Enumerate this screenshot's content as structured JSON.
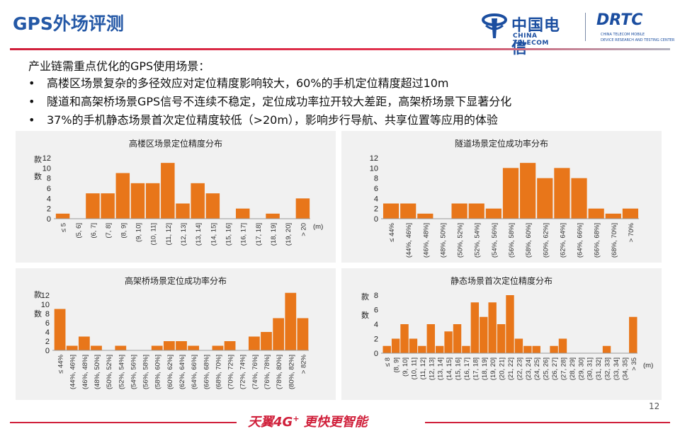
{
  "header": {
    "title": "GPS外场评测",
    "logo_ct_cn": "中国电信",
    "logo_ct_en": "CHINA TELECOM",
    "logo_drtc": "DRTC",
    "logo_drtc_sub1": "CHINA TELECOM MOBILE",
    "logo_drtc_sub2": "DEVICE RESEARCH AND TESTING CENTER"
  },
  "intro": "产业链需重点优化的GPS使用场景：",
  "bullets": [
    "高楼区场景复杂的多径效应对定位精度影响较大，60%的手机定位精度超过10m",
    "隧道和高架桥场景GPS信号不连续不稳定，定位成功率拉开较大差距，高架桥场景下显著分化",
    "37%的手机静态场景首次定位精度较低（>20m），影响步行导航、共享位置等应用的体验"
  ],
  "chart_data": [
    {
      "type": "bar",
      "title": "高楼区场景定位精度分布",
      "ylabel": "款数",
      "xlabel": "(m)",
      "ylim": [
        0,
        12
      ],
      "yticks": [
        0,
        2,
        4,
        6,
        8,
        10,
        12
      ],
      "categories": [
        "≤ 5",
        "(5, 6]",
        "(6, 7]",
        "(7, 8]",
        "(8, 9]",
        "(9, 10]",
        "(10, 11]",
        "(11, 12]",
        "(12, 13]",
        "(13, 14]",
        "(14, 15]",
        "(15, 16]",
        "(16, 17]",
        "(17, 18]",
        "(18, 19]",
        "(19, 20]",
        "> 20"
      ],
      "values": [
        1,
        0,
        5,
        5,
        9,
        7,
        7,
        11,
        3,
        7,
        5,
        0,
        2,
        0,
        1,
        0,
        4
      ],
      "color": "#e8761a",
      "grid": false
    },
    {
      "type": "bar",
      "title": "隧道场景定位成功率分布",
      "ylabel": "",
      "xlabel": "",
      "ylim": [
        0,
        12
      ],
      "yticks": [
        0,
        2,
        4,
        6,
        8,
        10,
        12
      ],
      "categories": [
        "≤ 44%",
        "(44%, 46%]",
        "(46%, 48%]",
        "(48%, 50%]",
        "(50%, 52%]",
        "(52%, 54%]",
        "(54%, 56%]",
        "(56%, 58%]",
        "(58%, 60%]",
        "(60%, 62%]",
        "(62%, 64%]",
        "(64%, 66%]",
        "(66%, 68%]",
        "(68%, 70%]",
        "> 70%"
      ],
      "values": [
        3,
        3,
        1,
        0,
        3,
        3,
        2,
        10,
        11,
        8,
        10,
        8,
        2,
        1,
        2
      ],
      "color": "#e8761a",
      "grid": false
    },
    {
      "type": "bar",
      "title": "高架桥场景定位成功率分布",
      "ylabel": "款数",
      "xlabel": "",
      "ylim": [
        0,
        12
      ],
      "yticks": [
        0,
        2,
        4,
        6,
        8,
        10,
        12
      ],
      "categories": [
        "≤ 44%",
        "(44%, 46%]",
        "(46%, 48%]",
        "(48%, 50%]",
        "(50%, 52%]",
        "(52%, 54%]",
        "(54%, 56%]",
        "(56%, 58%]",
        "(58%, 60%]",
        "(60%, 62%]",
        "(62%, 64%]",
        "(64%, 66%]",
        "(66%, 68%]",
        "(68%, 70%]",
        "(70%, 72%]",
        "(72%, 74%]",
        "(74%, 76%]",
        "(76%, 78%]",
        "(78%, 80%]",
        "(80%, 82%]",
        "> 82%"
      ],
      "values": [
        9,
        1,
        3,
        1,
        0,
        1,
        0,
        0,
        1,
        2,
        2,
        1,
        0,
        1,
        2,
        0,
        3,
        4,
        7,
        12.5,
        7
      ],
      "color": "#e8761a",
      "grid": false
    },
    {
      "type": "bar",
      "title": "静态场景首次定位精度分布",
      "ylabel": "款数",
      "xlabel": "(m)",
      "ylim": [
        0,
        8
      ],
      "yticks": [
        0,
        2,
        4,
        6,
        8
      ],
      "categories": [
        "≤ 8",
        "(8, 9]",
        "(9, 10]",
        "(10, 11]",
        "(11, 12]",
        "(12, 13]",
        "(13, 14]",
        "(14, 15]",
        "(15, 16]",
        "(16, 17]",
        "(17, 18]",
        "(18, 19]",
        "(19, 20]",
        "(20, 21]",
        "(21, 22]",
        "(22, 23]",
        "(23, 24]",
        "(24, 25]",
        "(25, 26]",
        "(26, 27]",
        "(27, 28]",
        "(28, 29]",
        "(29, 30]",
        "(30, 31]",
        "(31, 32]",
        "(32, 33]",
        "(33, 34]",
        "(34, 35]",
        "> 35"
      ],
      "values": [
        1,
        2,
        4,
        2,
        1,
        4,
        1,
        3,
        4,
        1,
        7,
        5,
        7,
        4,
        8,
        2,
        1,
        1,
        0,
        1,
        2,
        0,
        0,
        0,
        0,
        1,
        0,
        0,
        5
      ],
      "color": "#e8761a",
      "grid": false
    }
  ],
  "footer": {
    "page_number": "12",
    "slogan": "天翼4G",
    "slogan_sup": "+",
    "slogan_rest": " 更快更智能"
  }
}
